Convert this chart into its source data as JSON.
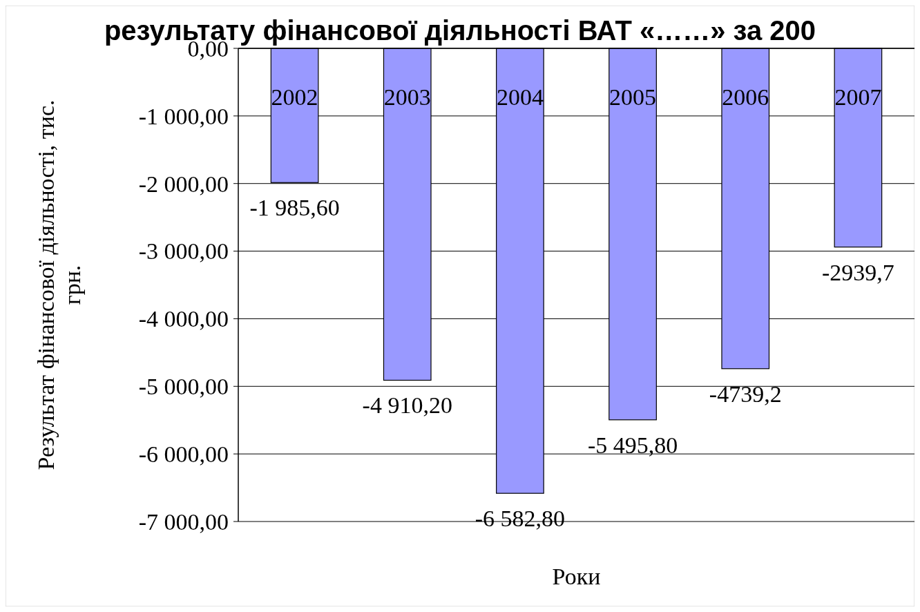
{
  "chart_data": {
    "type": "bar",
    "title": "результату фінансової діяльності ВАТ «……» за 200",
    "xlabel": "Роки",
    "ylabel": "Результат фінансової діяльності, тис. грн.",
    "categories": [
      "2002",
      "2003",
      "2004",
      "2005",
      "2006",
      "2007"
    ],
    "values": [
      -1985.6,
      -4910.2,
      -6582.8,
      -5495.8,
      -4739.2,
      -2939.7
    ],
    "value_labels": [
      "-1 985,60",
      "-4 910,20",
      "-6 582,80",
      "-5 495,80",
      "-4739,2",
      "-2939,7"
    ],
    "color": "#9999ff",
    "ylim": [
      -7000,
      0
    ],
    "yticks": [
      {
        "value": 0,
        "label": "0,00"
      },
      {
        "value": -1000,
        "label": "-1 000,00"
      },
      {
        "value": -2000,
        "label": "-2 000,00"
      },
      {
        "value": -3000,
        "label": "-3 000,00"
      },
      {
        "value": -4000,
        "label": "-4 000,00"
      },
      {
        "value": -5000,
        "label": "-5 000,00"
      },
      {
        "value": -6000,
        "label": "-6 000,00"
      },
      {
        "value": -7000,
        "label": "-7 000,00"
      }
    ],
    "grid": "y"
  }
}
